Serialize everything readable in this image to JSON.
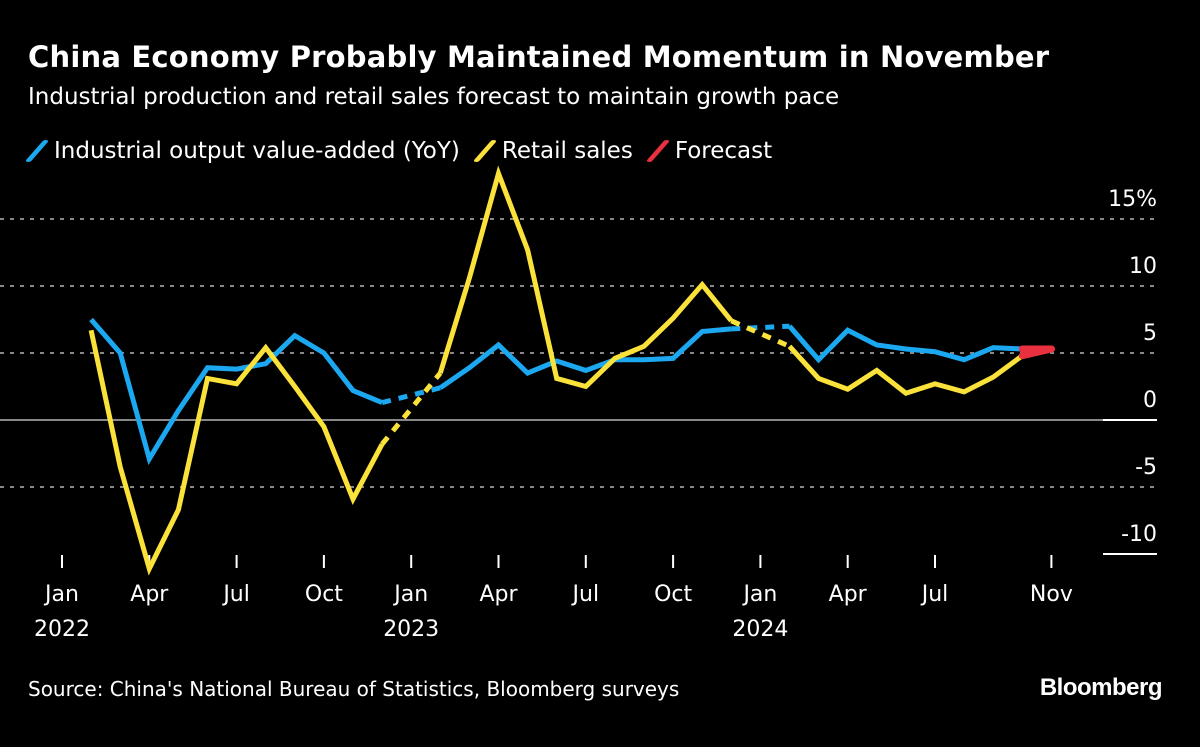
{
  "title": "China Economy Probably Maintained Momentum in November",
  "subtitle": "Industrial production and retail sales forecast to maintain growth pace",
  "legend": [
    {
      "label": "Industrial output value-added (YoY)",
      "color": "#1ba8f0"
    },
    {
      "label": "Retail sales",
      "color": "#fbe23a"
    },
    {
      "label": "Forecast",
      "color": "#e8303f"
    }
  ],
  "source": "Source: China's National Bureau of Statistics, Bloomberg surveys",
  "logo": "Bloomberg",
  "chart_data": {
    "type": "line",
    "ylim": [
      -10,
      18.5
    ],
    "grid": true,
    "legend_position": "top-left",
    "y_ticks": [
      {
        "value": 15,
        "label": "15%"
      },
      {
        "value": 10,
        "label": "10"
      },
      {
        "value": 5,
        "label": "5"
      },
      {
        "value": 0,
        "label": "0"
      },
      {
        "value": -5,
        "label": "-5"
      },
      {
        "value": -10,
        "label": "-10"
      }
    ],
    "x_ticks": [
      {
        "month": "2022-01",
        "label": "Jan",
        "year": "2022"
      },
      {
        "month": "2022-04",
        "label": "Apr",
        "year": ""
      },
      {
        "month": "2022-07",
        "label": "Jul",
        "year": ""
      },
      {
        "month": "2022-10",
        "label": "Oct",
        "year": ""
      },
      {
        "month": "2023-01",
        "label": "Jan",
        "year": "2023"
      },
      {
        "month": "2023-04",
        "label": "Apr",
        "year": ""
      },
      {
        "month": "2023-07",
        "label": "Jul",
        "year": ""
      },
      {
        "month": "2023-10",
        "label": "Oct",
        "year": ""
      },
      {
        "month": "2024-01",
        "label": "Jan",
        "year": "2024"
      },
      {
        "month": "2024-04",
        "label": "Apr",
        "year": ""
      },
      {
        "month": "2024-07",
        "label": "Jul",
        "year": ""
      },
      {
        "month": "2024-11",
        "label": "Nov",
        "year": ""
      }
    ],
    "x": [
      "2022-02",
      "2022-03",
      "2022-04",
      "2022-05",
      "2022-06",
      "2022-07",
      "2022-08",
      "2022-09",
      "2022-10",
      "2022-11",
      "2022-12",
      "2023-02",
      "2023-03",
      "2023-04",
      "2023-05",
      "2023-06",
      "2023-07",
      "2023-08",
      "2023-09",
      "2023-10",
      "2023-11",
      "2023-12",
      "2024-02",
      "2024-03",
      "2024-04",
      "2024-05",
      "2024-06",
      "2024-07",
      "2024-08",
      "2024-09",
      "2024-10"
    ],
    "series": [
      {
        "name": "Industrial output value-added (YoY)",
        "color": "#1ba8f0",
        "values": [
          7.5,
          5.0,
          -2.9,
          0.7,
          3.9,
          3.8,
          4.2,
          6.3,
          5.0,
          2.2,
          1.3,
          2.4,
          3.9,
          5.6,
          3.5,
          4.4,
          3.7,
          4.5,
          4.5,
          4.6,
          6.6,
          6.8,
          7.0,
          4.5,
          6.7,
          5.6,
          5.3,
          5.1,
          4.5,
          5.4,
          5.3
        ]
      },
      {
        "name": "Retail sales",
        "color": "#fbe23a",
        "values": [
          6.7,
          -3.5,
          -11.1,
          -6.7,
          3.1,
          2.7,
          5.4,
          2.5,
          -0.5,
          -5.9,
          -1.8,
          3.5,
          10.6,
          18.4,
          12.7,
          3.1,
          2.5,
          4.6,
          5.5,
          7.6,
          10.1,
          7.4,
          5.5,
          3.1,
          2.3,
          3.7,
          2.0,
          2.7,
          2.1,
          3.2,
          4.8
        ]
      }
    ],
    "forecast": {
      "name": "Forecast",
      "color": "#e8303f",
      "month": "2024-11",
      "values": {
        "Industrial output value-added (YoY)": 5.3,
        "Retail sales": 5.3
      }
    }
  }
}
